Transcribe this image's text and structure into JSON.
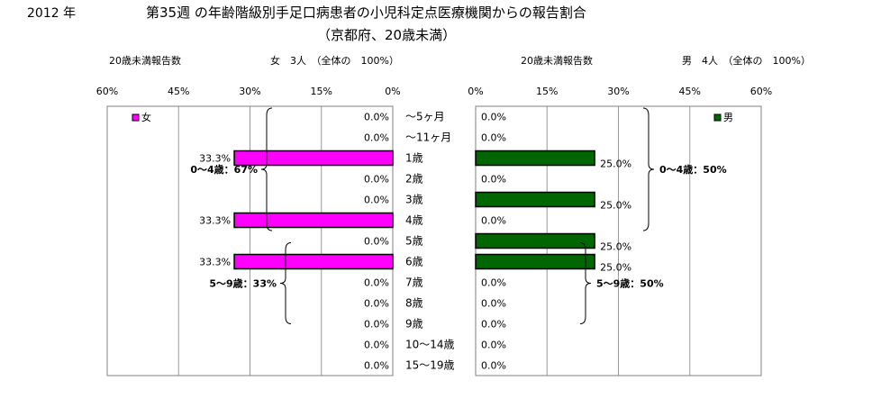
{
  "header": {
    "year": "2012 年",
    "title_line1": "第35週 の年齢階級別手足口病患者の小児科定点医療機関からの報告割合",
    "title_line2": "（京都府、20歳未満）"
  },
  "chart_data": {
    "type": "bar",
    "orientation": "horizontal",
    "layout": "population-pyramid",
    "categories": [
      "～5ヶ月",
      "～11ヶ月",
      "1歳",
      "2歳",
      "3歳",
      "4歳",
      "5歳",
      "6歳",
      "7歳",
      "8歳",
      "9歳",
      "10～14歳",
      "15～19歳"
    ],
    "xlim": [
      0,
      60
    ],
    "xticks": [
      0,
      15,
      30,
      45,
      60
    ],
    "xtick_labels": [
      "0%",
      "15%",
      "30%",
      "45%",
      "60%"
    ],
    "grid": true,
    "panels": [
      {
        "side": "left",
        "name": "女",
        "count_label": "20歳未満報告数",
        "count_text": "女　3人　（全体の　100%）",
        "color": "#ff00ff",
        "values": [
          0.0,
          0.0,
          33.3,
          0.0,
          0.0,
          33.3,
          0.0,
          33.3,
          0.0,
          0.0,
          0.0,
          0.0,
          0.0
        ],
        "value_labels": [
          "0.0%",
          "0.0%",
          "33.3%",
          "0.0%",
          "0.0%",
          "33.3%",
          "0.0%",
          "33.3%",
          "0.0%",
          "0.0%",
          "0.0%",
          "0.0%",
          "0.0%"
        ],
        "legend_position": "top-left",
        "annotations": [
          {
            "text": "0～4歳：67%",
            "from": 0,
            "to": 5
          },
          {
            "text": "5～9歳：33%",
            "from": 6,
            "to": 10
          }
        ]
      },
      {
        "side": "right",
        "name": "男",
        "count_label": "20歳未満報告数",
        "count_text": "男　4人　（全体の　100%）",
        "color": "#006600",
        "values": [
          0.0,
          0.0,
          25.0,
          0.0,
          25.0,
          0.0,
          25.0,
          25.0,
          0.0,
          0.0,
          0.0,
          0.0,
          0.0
        ],
        "value_labels": [
          "0.0%",
          "0.0%",
          "25.0%",
          "0.0%",
          "25.0%",
          "0.0%",
          "25.0%",
          "25.0%",
          "0.0%",
          "0.0%",
          "0.0%",
          "0.0%",
          "0.0%"
        ],
        "legend_position": "top-right",
        "annotations": [
          {
            "text": "0～4歳：50%",
            "from": 0,
            "to": 5
          },
          {
            "text": "5～9歳：50%",
            "from": 6,
            "to": 10
          }
        ]
      }
    ]
  }
}
